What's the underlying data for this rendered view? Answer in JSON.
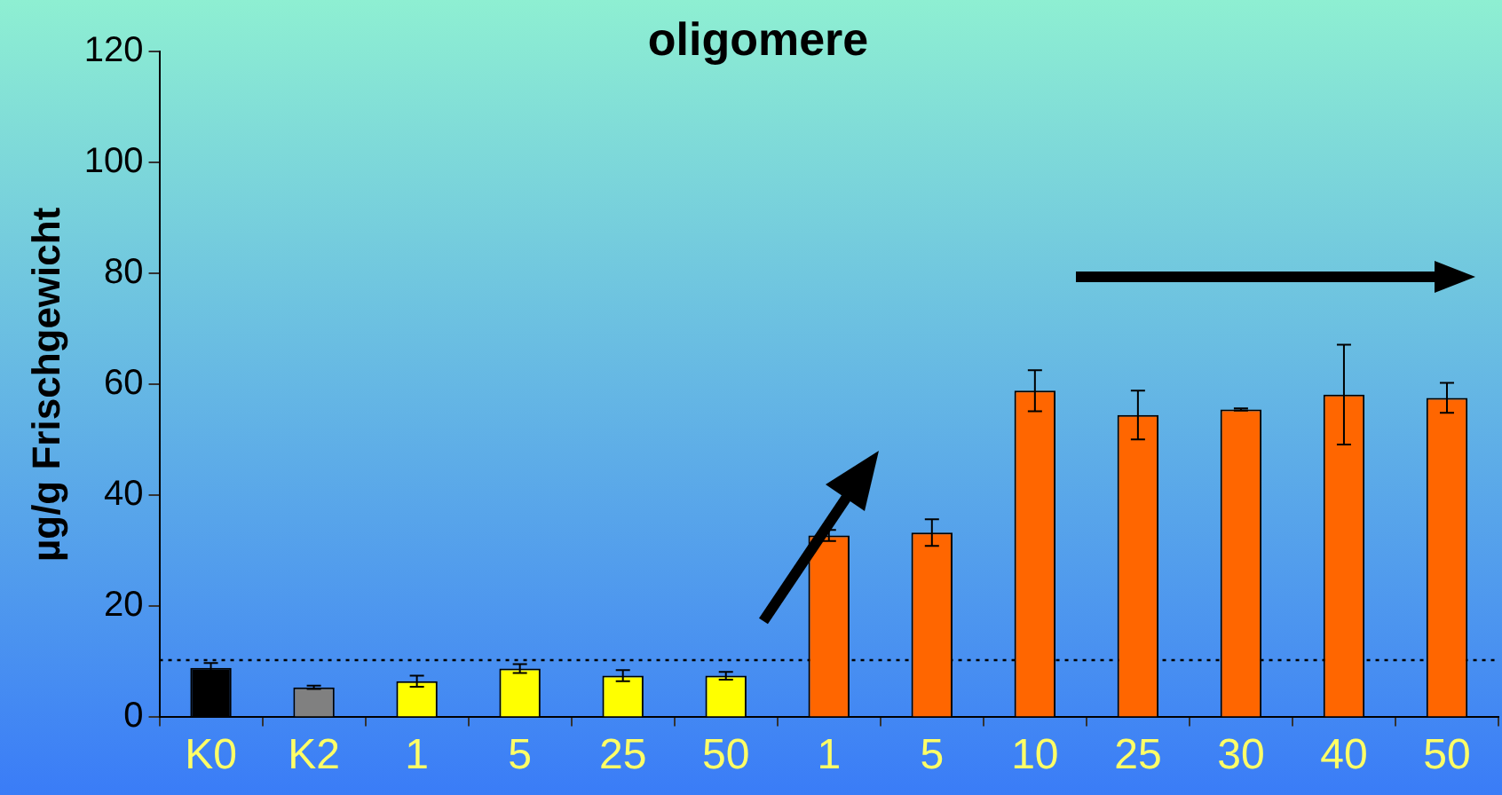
{
  "chart_data": {
    "type": "bar",
    "title": "oligomere",
    "ylabel": "µg/g Frischgewicht",
    "categories": [
      "K0",
      "K2",
      "1",
      "5",
      "25",
      "50",
      "1",
      "5",
      "10",
      "25",
      "30",
      "40",
      "50"
    ],
    "values": [
      8.9,
      5.4,
      6.5,
      8.8,
      7.5,
      7.5,
      32.8,
      33.3,
      58.9,
      54.5,
      55.5,
      58.2,
      57.6
    ],
    "errors": [
      0.9,
      0.3,
      1,
      0.8,
      1,
      0.7,
      1,
      2.4,
      3.7,
      4.4,
      0.2,
      9,
      2.7
    ],
    "colors": [
      "#000000",
      "#808080",
      "#ffff00",
      "#ffff00",
      "#ffff00",
      "#ffff00",
      "#ff6600",
      "#ff6600",
      "#ff6600",
      "#ff6600",
      "#ff6600",
      "#ff6600",
      "#ff6600"
    ],
    "ylim": [
      0,
      120
    ],
    "yticks": [
      0,
      20,
      40,
      60,
      80,
      100,
      120
    ],
    "grid": false,
    "legend": false,
    "ref_lines": [
      {
        "axis": "y",
        "value": 10.3,
        "line_style": "dotted",
        "color": "#000000"
      }
    ]
  }
}
